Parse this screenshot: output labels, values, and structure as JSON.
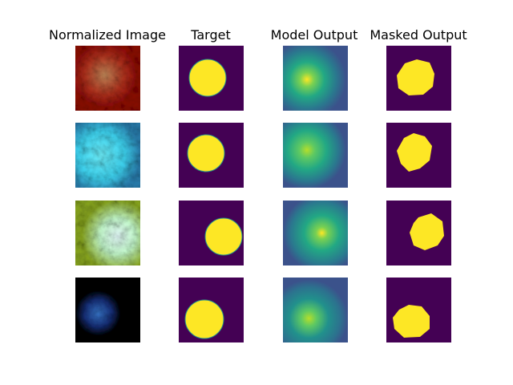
{
  "columns": [
    "Normalized Image",
    "Target",
    "Model Output",
    "Masked Output"
  ]
}
